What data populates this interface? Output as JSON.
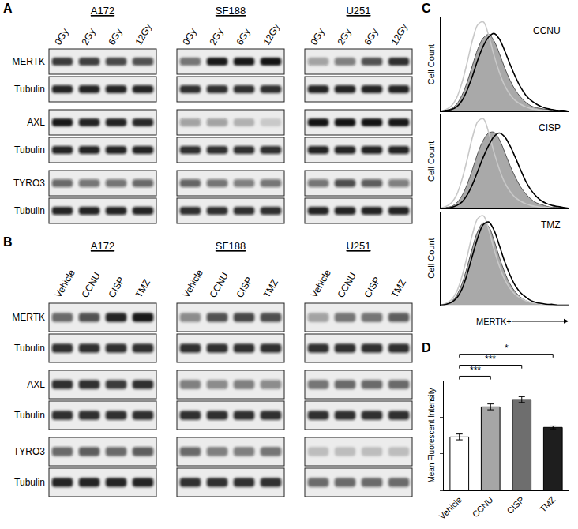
{
  "blots": [
    {
      "panel": "A",
      "row_labels": [
        "MERTK",
        "Tubulin",
        "AXL",
        "Tubulin",
        "TYRO3",
        "Tubulin"
      ],
      "groups": [
        {
          "name": "A172",
          "lanes": [
            "0Gy",
            "2Gy",
            "6Gy",
            "12Gy"
          ],
          "bands": [
            [
              0.8,
              0.78,
              0.74,
              0.7
            ],
            [
              0.9,
              0.9,
              0.9,
              0.9
            ],
            [
              0.95,
              0.9,
              0.9,
              0.88
            ],
            [
              0.9,
              0.9,
              0.9,
              0.9
            ],
            [
              0.6,
              0.55,
              0.55,
              0.6
            ],
            [
              0.9,
              0.9,
              0.9,
              0.9
            ]
          ]
        },
        {
          "name": "SF188",
          "lanes": [
            "0Gy",
            "2Gy",
            "6Gy",
            "12Gy"
          ],
          "bands": [
            [
              0.55,
              0.95,
              0.95,
              0.97
            ],
            [
              0.85,
              0.85,
              0.85,
              0.85
            ],
            [
              0.35,
              0.35,
              0.25,
              0.15
            ],
            [
              0.85,
              0.85,
              0.85,
              0.85
            ],
            [
              0.62,
              0.55,
              0.5,
              0.55
            ],
            [
              0.85,
              0.85,
              0.85,
              0.85
            ]
          ]
        },
        {
          "name": "U251",
          "lanes": [
            "0Gy",
            "2Gy",
            "6Gy",
            "12Gy"
          ],
          "bands": [
            [
              0.35,
              0.5,
              0.7,
              0.85
            ],
            [
              0.9,
              0.9,
              0.9,
              0.9
            ],
            [
              0.97,
              0.97,
              0.97,
              0.95
            ],
            [
              0.9,
              0.9,
              0.9,
              0.9
            ],
            [
              0.55,
              0.72,
              0.65,
              0.5
            ],
            [
              0.9,
              0.9,
              0.9,
              0.9
            ]
          ]
        }
      ]
    },
    {
      "panel": "B",
      "row_labels": [
        "MERTK",
        "Tubulin",
        "AXL",
        "Tubulin",
        "TYRO3",
        "Tubulin"
      ],
      "groups": [
        {
          "name": "A172",
          "lanes": [
            "Vehicle",
            "CCNU",
            "CISP",
            "TMZ"
          ],
          "bands": [
            [
              0.6,
              0.7,
              0.9,
              0.95
            ],
            [
              0.85,
              0.85,
              0.85,
              0.85
            ],
            [
              0.85,
              0.85,
              0.8,
              0.85
            ],
            [
              0.85,
              0.85,
              0.85,
              0.85
            ],
            [
              0.6,
              0.65,
              0.6,
              0.65
            ],
            [
              0.9,
              0.9,
              0.9,
              0.9
            ]
          ]
        },
        {
          "name": "SF188",
          "lanes": [
            "Vehicle",
            "CCNU",
            "CISP",
            "TMZ"
          ],
          "bands": [
            [
              0.45,
              0.7,
              0.75,
              0.72
            ],
            [
              0.85,
              0.85,
              0.85,
              0.85
            ],
            [
              0.5,
              0.45,
              0.5,
              0.45
            ],
            [
              0.85,
              0.85,
              0.85,
              0.85
            ],
            [
              0.6,
              0.5,
              0.5,
              0.55
            ],
            [
              0.85,
              0.85,
              0.85,
              0.85
            ]
          ]
        },
        {
          "name": "U251",
          "lanes": [
            "Vehicle",
            "CCNU",
            "CISP",
            "TMZ"
          ],
          "bands": [
            [
              0.35,
              0.55,
              0.55,
              0.65
            ],
            [
              0.85,
              0.85,
              0.85,
              0.85
            ],
            [
              0.55,
              0.6,
              0.6,
              0.6
            ],
            [
              0.85,
              0.85,
              0.85,
              0.85
            ],
            [
              0.2,
              0.2,
              0.2,
              0.2
            ],
            [
              0.6,
              0.6,
              0.6,
              0.6
            ]
          ]
        }
      ]
    }
  ],
  "chart_data": [
    {
      "type": "line",
      "panel": "C",
      "title": "CCNU",
      "ylabel": "Cell Count",
      "x": [
        0,
        1,
        2,
        3,
        4,
        5,
        6,
        7,
        8,
        9,
        10,
        11,
        12,
        13,
        14,
        15,
        16,
        17,
        18,
        19,
        20,
        21,
        22,
        23,
        24
      ],
      "xlim": [
        0,
        24
      ],
      "ylim": [
        0,
        1.05
      ],
      "tick_labels": false,
      "grid": false,
      "series": [
        {
          "type": "area",
          "color": "#a9a9a9",
          "values": [
            0,
            0.01,
            0.03,
            0.08,
            0.18,
            0.33,
            0.52,
            0.7,
            0.82,
            0.86,
            0.79,
            0.65,
            0.49,
            0.35,
            0.24,
            0.16,
            0.1,
            0.06,
            0.04,
            0.03,
            0.02,
            0.01,
            0.01,
            0,
            0
          ]
        },
        {
          "type": "line",
          "color": "#c8c8c8",
          "line_style": "solid",
          "values": [
            0,
            0.02,
            0.06,
            0.15,
            0.32,
            0.55,
            0.8,
            0.97,
            1.0,
            0.85,
            0.63,
            0.44,
            0.29,
            0.19,
            0.12,
            0.08,
            0.05,
            0.03,
            0.02,
            0.01,
            0.01,
            0,
            0,
            0,
            0
          ]
        },
        {
          "type": "line",
          "color": "#000000",
          "line_style": "solid",
          "values": [
            0,
            0.01,
            0.02,
            0.05,
            0.12,
            0.24,
            0.4,
            0.58,
            0.73,
            0.83,
            0.87,
            0.81,
            0.68,
            0.53,
            0.39,
            0.27,
            0.18,
            0.12,
            0.08,
            0.05,
            0.03,
            0.02,
            0.01,
            0.01,
            0
          ]
        }
      ]
    },
    {
      "type": "line",
      "title": "CISP",
      "ylabel": "Cell Count",
      "x": [
        0,
        1,
        2,
        3,
        4,
        5,
        6,
        7,
        8,
        9,
        10,
        11,
        12,
        13,
        14,
        15,
        16,
        17,
        18,
        19,
        20,
        21,
        22,
        23,
        24
      ],
      "xlim": [
        0,
        24
      ],
      "ylim": [
        0,
        1.05
      ],
      "tick_labels": false,
      "grid": false,
      "series": [
        {
          "type": "area",
          "color": "#a9a9a9",
          "values": [
            0,
            0.01,
            0.02,
            0.06,
            0.14,
            0.27,
            0.44,
            0.62,
            0.76,
            0.84,
            0.85,
            0.77,
            0.63,
            0.48,
            0.35,
            0.24,
            0.16,
            0.1,
            0.06,
            0.04,
            0.02,
            0.01,
            0.01,
            0,
            0
          ]
        },
        {
          "type": "line",
          "color": "#c8c8c8",
          "line_style": "solid",
          "values": [
            0,
            0.02,
            0.06,
            0.15,
            0.32,
            0.55,
            0.8,
            0.97,
            1.0,
            0.85,
            0.63,
            0.44,
            0.29,
            0.19,
            0.12,
            0.08,
            0.05,
            0.03,
            0.02,
            0.01,
            0.01,
            0,
            0,
            0,
            0
          ]
        },
        {
          "type": "line",
          "color": "#000000",
          "line_style": "solid",
          "values": [
            0,
            0,
            0.01,
            0.03,
            0.07,
            0.15,
            0.27,
            0.42,
            0.57,
            0.7,
            0.8,
            0.84,
            0.8,
            0.7,
            0.57,
            0.43,
            0.3,
            0.2,
            0.13,
            0.08,
            0.05,
            0.03,
            0.02,
            0.01,
            0
          ]
        }
      ]
    },
    {
      "type": "line",
      "title": "TMZ",
      "ylabel": "Cell Count",
      "xlabel": "MERTK+",
      "x": [
        0,
        1,
        2,
        3,
        4,
        5,
        6,
        7,
        8,
        9,
        10,
        11,
        12,
        13,
        14,
        15,
        16,
        17,
        18,
        19,
        20,
        21,
        22,
        23,
        24
      ],
      "xlim": [
        0,
        24
      ],
      "ylim": [
        0,
        1.05
      ],
      "tick_labels": false,
      "grid": false,
      "series": [
        {
          "type": "area",
          "color": "#a9a9a9",
          "values": [
            0,
            0.01,
            0.04,
            0.11,
            0.24,
            0.43,
            0.65,
            0.83,
            0.92,
            0.88,
            0.73,
            0.54,
            0.37,
            0.24,
            0.15,
            0.09,
            0.05,
            0.03,
            0.02,
            0.01,
            0.01,
            0,
            0,
            0,
            0
          ]
        },
        {
          "type": "line",
          "color": "#c8c8c8",
          "line_style": "solid",
          "values": [
            0,
            0.02,
            0.06,
            0.15,
            0.32,
            0.55,
            0.8,
            0.97,
            1.0,
            0.85,
            0.63,
            0.44,
            0.29,
            0.19,
            0.12,
            0.08,
            0.05,
            0.03,
            0.02,
            0.01,
            0.01,
            0,
            0,
            0,
            0
          ]
        },
        {
          "type": "line",
          "color": "#000000",
          "line_style": "solid",
          "values": [
            0,
            0.01,
            0.03,
            0.08,
            0.18,
            0.35,
            0.56,
            0.76,
            0.9,
            0.93,
            0.84,
            0.67,
            0.49,
            0.34,
            0.22,
            0.14,
            0.09,
            0.05,
            0.03,
            0.02,
            0.01,
            0.01,
            0,
            0,
            0
          ]
        }
      ]
    },
    {
      "type": "bar",
      "panel": "D",
      "ylabel": "Mean Fluorescent Intensity",
      "categories": [
        "Vehicle",
        "CCNU",
        "CISP",
        "TMZ"
      ],
      "values": [
        73,
        114,
        124,
        86
      ],
      "errors": [
        4,
        4,
        4,
        2
      ],
      "colors": [
        "#ffffff",
        "#a6a6a6",
        "#6e6e6e",
        "#1e1e1e"
      ],
      "ylim": [
        0,
        150
      ],
      "yticks": [
        0,
        50,
        100,
        150
      ],
      "tick_labels": "x",
      "grid": false,
      "significance": [
        {
          "from": "Vehicle",
          "to": "CCNU",
          "label": "***"
        },
        {
          "from": "Vehicle",
          "to": "CISP",
          "label": "***"
        },
        {
          "from": "Vehicle",
          "to": "TMZ",
          "label": "*"
        }
      ]
    }
  ]
}
